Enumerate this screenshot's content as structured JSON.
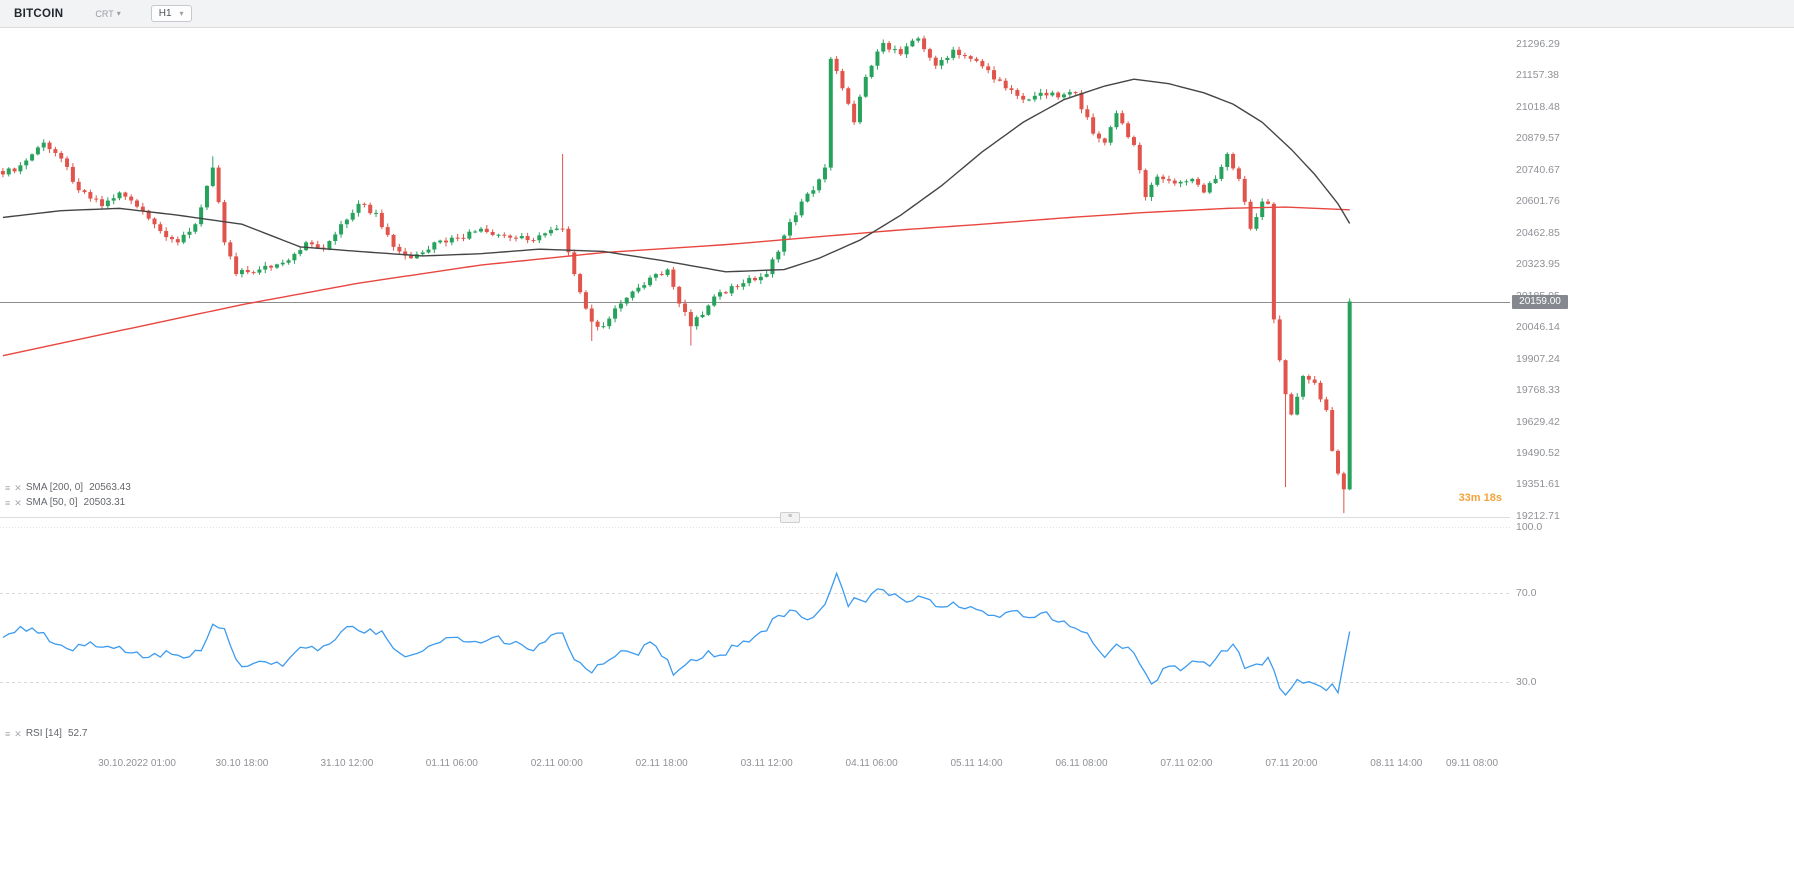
{
  "toolbar": {
    "symbol": "BITCOIN",
    "chart_type": "CRT",
    "timeframe": "H1"
  },
  "icons": {
    "settings": "≡",
    "remove": "✕",
    "caret_down": "▾",
    "pane_handle": "≡"
  },
  "indicators": {
    "sma200": {
      "label": "SMA [200, 0]",
      "value": "20563.43"
    },
    "sma50": {
      "label": "SMA [50, 0]",
      "value": "20503.31"
    },
    "rsi": {
      "label": "RSI [14]",
      "value": "52.7"
    }
  },
  "countdown": "33m 18s",
  "price_axis": {
    "current_price": "20159.00"
  },
  "chart_data": {
    "type": "candlestick",
    "title": "BITCOIN H1",
    "symbol": "BITCOIN",
    "timeframe": "H1",
    "n_candles": 232,
    "x_slots": 259,
    "first_tick_index": 23,
    "tick_step": 18,
    "price_min": 19208,
    "price_max": 21366,
    "current_price": 20159.0,
    "price_ticks": [
      "21296.29",
      "21157.38",
      "21018.48",
      "20879.57",
      "20740.67",
      "20601.76",
      "20462.85",
      "20323.95",
      "20185.05",
      "20046.14",
      "19907.24",
      "19768.33",
      "19629.42",
      "19490.52",
      "19351.61",
      "19212.71"
    ],
    "time_ticks": [
      "30.10.2022 01:00",
      "30.10 18:00",
      "31.10 12:00",
      "01.11 06:00",
      "02.11 00:00",
      "02.11 18:00",
      "03.11 12:00",
      "04.11 06:00",
      "05.11 14:00",
      "06.11 08:00",
      "07.11 02:00",
      "07.11 20:00",
      "08.11 14:00",
      "09.11 08:00"
    ],
    "rsi_ticks": [
      "100.0",
      "70.0",
      "30.0"
    ],
    "close_path": [
      [
        0,
        20720
      ],
      [
        3,
        20760
      ],
      [
        7,
        20860
      ],
      [
        10,
        20790
      ],
      [
        13,
        20650
      ],
      [
        17,
        20580
      ],
      [
        20,
        20640
      ],
      [
        24,
        20560
      ],
      [
        27,
        20470
      ],
      [
        30,
        20420
      ],
      [
        33,
        20500
      ],
      [
        36,
        20750
      ],
      [
        38,
        20420
      ],
      [
        40,
        20280
      ],
      [
        44,
        20300
      ],
      [
        48,
        20330
      ],
      [
        52,
        20420
      ],
      [
        55,
        20390
      ],
      [
        58,
        20500
      ],
      [
        61,
        20590
      ],
      [
        64,
        20550
      ],
      [
        67,
        20400
      ],
      [
        70,
        20350
      ],
      [
        74,
        20420
      ],
      [
        78,
        20440
      ],
      [
        82,
        20480
      ],
      [
        86,
        20450
      ],
      [
        90,
        20430
      ],
      [
        93,
        20460
      ],
      [
        96,
        20480
      ],
      [
        99,
        20200
      ],
      [
        101,
        20070
      ],
      [
        103,
        20050
      ],
      [
        106,
        20150
      ],
      [
        109,
        20220
      ],
      [
        112,
        20280
      ],
      [
        114,
        20300
      ],
      [
        116,
        20150
      ],
      [
        118,
        20050
      ],
      [
        120,
        20100
      ],
      [
        123,
        20200
      ],
      [
        127,
        20240
      ],
      [
        131,
        20280
      ],
      [
        134,
        20450
      ],
      [
        137,
        20600
      ],
      [
        139,
        20650
      ],
      [
        141,
        20750
      ],
      [
        142,
        21230
      ],
      [
        144,
        21100
      ],
      [
        146,
        20950
      ],
      [
        148,
        21150
      ],
      [
        151,
        21300
      ],
      [
        154,
        21250
      ],
      [
        157,
        21320
      ],
      [
        160,
        21200
      ],
      [
        163,
        21270
      ],
      [
        166,
        21230
      ],
      [
        169,
        21180
      ],
      [
        172,
        21100
      ],
      [
        175,
        21050
      ],
      [
        178,
        21080
      ],
      [
        181,
        21060
      ],
      [
        184,
        21080
      ],
      [
        187,
        20900
      ],
      [
        189,
        20860
      ],
      [
        191,
        20990
      ],
      [
        194,
        20850
      ],
      [
        196,
        20620
      ],
      [
        198,
        20710
      ],
      [
        201,
        20680
      ],
      [
        204,
        20700
      ],
      [
        206,
        20640
      ],
      [
        208,
        20700
      ],
      [
        210,
        20810
      ],
      [
        212,
        20700
      ],
      [
        214,
        20480
      ],
      [
        216,
        20600
      ],
      [
        217,
        20590
      ],
      [
        218,
        20080
      ],
      [
        219,
        19900
      ],
      [
        220,
        19750
      ],
      [
        221,
        19660
      ],
      [
        223,
        19830
      ],
      [
        225,
        19800
      ],
      [
        227,
        19680
      ],
      [
        228,
        19500
      ],
      [
        229,
        19400
      ],
      [
        230,
        19330
      ],
      [
        231,
        20159
      ]
    ],
    "wick_events": [
      {
        "i": 7,
        "high": 20875
      },
      {
        "i": 36,
        "high": 20800
      },
      {
        "i": 96,
        "high": 20810
      },
      {
        "i": 101,
        "low": 19985
      },
      {
        "i": 118,
        "low": 19965
      },
      {
        "i": 220,
        "low": 19340
      },
      {
        "i": 230,
        "low": 19225
      }
    ],
    "series": [
      {
        "name": "SMA 200",
        "color": "#e8463f",
        "path": [
          [
            0,
            19920
          ],
          [
            20,
            20030
          ],
          [
            41,
            20145
          ],
          [
            61,
            20240
          ],
          [
            82,
            20320
          ],
          [
            103,
            20375
          ],
          [
            124,
            20410
          ],
          [
            140,
            20445
          ],
          [
            154,
            20475
          ],
          [
            168,
            20500
          ],
          [
            182,
            20528
          ],
          [
            196,
            20552
          ],
          [
            210,
            20570
          ],
          [
            220,
            20576
          ],
          [
            231,
            20563.43
          ]
        ]
      },
      {
        "name": "SMA 50",
        "color": "#454545",
        "path": [
          [
            0,
            20530
          ],
          [
            10,
            20560
          ],
          [
            20,
            20570
          ],
          [
            30,
            20540
          ],
          [
            41,
            20500
          ],
          [
            51,
            20400
          ],
          [
            61,
            20380
          ],
          [
            72,
            20360
          ],
          [
            82,
            20370
          ],
          [
            92,
            20390
          ],
          [
            103,
            20380
          ],
          [
            113,
            20340
          ],
          [
            124,
            20290
          ],
          [
            134,
            20300
          ],
          [
            140,
            20350
          ],
          [
            147,
            20430
          ],
          [
            154,
            20540
          ],
          [
            161,
            20670
          ],
          [
            168,
            20820
          ],
          [
            175,
            20950
          ],
          [
            182,
            21050
          ],
          [
            189,
            21110
          ],
          [
            194,
            21140
          ],
          [
            200,
            21120
          ],
          [
            206,
            21080
          ],
          [
            211,
            21030
          ],
          [
            216,
            20950
          ],
          [
            221,
            20830
          ],
          [
            225,
            20720
          ],
          [
            229,
            20590
          ],
          [
            231,
            20503.31
          ]
        ]
      }
    ],
    "rsi": {
      "name": "RSI 14",
      "color": "#3d9bf0",
      "overbought": 70,
      "oversold": 30,
      "last": 52.7,
      "path": [
        [
          0,
          50
        ],
        [
          3,
          55
        ],
        [
          6,
          52
        ],
        [
          9,
          47
        ],
        [
          12,
          44
        ],
        [
          15,
          48
        ],
        [
          18,
          46
        ],
        [
          22,
          43
        ],
        [
          25,
          41
        ],
        [
          28,
          44
        ],
        [
          30,
          42
        ],
        [
          34,
          44
        ],
        [
          36,
          56
        ],
        [
          38,
          54
        ],
        [
          40,
          40
        ],
        [
          42,
          37
        ],
        [
          45,
          39
        ],
        [
          48,
          37
        ],
        [
          50,
          43
        ],
        [
          53,
          46
        ],
        [
          54,
          44
        ],
        [
          57,
          49
        ],
        [
          60,
          55
        ],
        [
          62,
          52
        ],
        [
          65,
          53
        ],
        [
          67,
          45
        ],
        [
          70,
          42
        ],
        [
          73,
          46
        ],
        [
          77,
          50
        ],
        [
          80,
          48
        ],
        [
          84,
          50
        ],
        [
          87,
          47
        ],
        [
          91,
          44
        ],
        [
          93,
          48
        ],
        [
          96,
          52
        ],
        [
          98,
          40
        ],
        [
          101,
          34
        ],
        [
          103,
          38
        ],
        [
          106,
          44
        ],
        [
          109,
          42
        ],
        [
          111,
          48
        ],
        [
          114,
          40
        ],
        [
          115,
          33
        ],
        [
          118,
          40
        ],
        [
          121,
          44
        ],
        [
          123,
          42
        ],
        [
          126,
          46
        ],
        [
          128,
          48
        ],
        [
          131,
          53
        ],
        [
          133,
          60
        ],
        [
          136,
          62
        ],
        [
          138,
          58
        ],
        [
          140,
          62
        ],
        [
          141,
          65
        ],
        [
          143,
          79
        ],
        [
          145,
          64
        ],
        [
          146,
          68
        ],
        [
          148,
          66
        ],
        [
          150,
          72
        ],
        [
          152,
          69
        ],
        [
          155,
          66
        ],
        [
          158,
          68
        ],
        [
          160,
          64
        ],
        [
          163,
          66
        ],
        [
          165,
          63
        ],
        [
          168,
          62
        ],
        [
          170,
          60
        ],
        [
          173,
          62
        ],
        [
          176,
          59
        ],
        [
          178,
          61
        ],
        [
          181,
          57
        ],
        [
          183,
          55
        ],
        [
          186,
          52
        ],
        [
          188,
          44
        ],
        [
          189,
          41
        ],
        [
          191,
          47
        ],
        [
          194,
          43
        ],
        [
          195,
          38
        ],
        [
          197,
          29
        ],
        [
          200,
          37
        ],
        [
          202,
          35
        ],
        [
          205,
          39
        ],
        [
          207,
          37
        ],
        [
          209,
          44
        ],
        [
          211,
          47
        ],
        [
          213,
          36
        ],
        [
          215,
          38
        ],
        [
          217,
          41
        ],
        [
          219,
          27
        ],
        [
          220,
          24
        ],
        [
          222,
          31
        ],
        [
          224,
          30
        ],
        [
          225,
          29
        ],
        [
          227,
          26
        ],
        [
          228,
          29
        ],
        [
          229,
          25
        ],
        [
          231,
          52.7
        ]
      ]
    },
    "colors": {
      "up": "#27a25c",
      "down": "#e0544b",
      "current_line": "#8d8d8d",
      "grid": "#d8d8d8"
    }
  }
}
